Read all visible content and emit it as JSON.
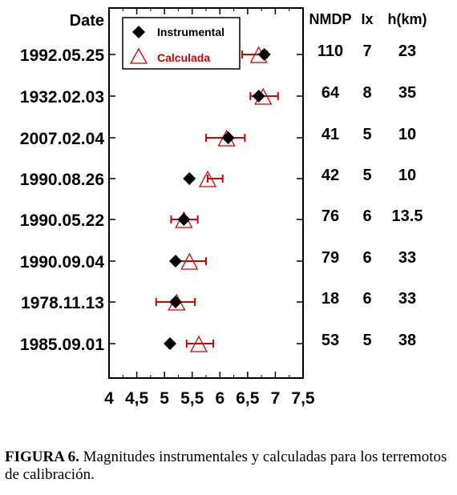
{
  "chart_data": {
    "type": "scatter",
    "xlim": [
      4,
      7.5
    ],
    "xticks": [
      4,
      4.5,
      5,
      5.5,
      6,
      6.5,
      7,
      7.5
    ],
    "xtick_labels": [
      "4",
      "4,5",
      "5",
      "5,5",
      "6",
      "6,5",
      "7",
      "7,5"
    ],
    "row_header": "Date",
    "column_headers": [
      "NMDP",
      "Ix",
      "h(km)"
    ],
    "grid": false,
    "legend_position": "top-left",
    "rows": [
      {
        "date": "1992.05.25",
        "instrumental": 6.8,
        "calculada": 6.7,
        "err_low": 6.4,
        "err_high": 6.85,
        "nmdp": "110",
        "ix": "7",
        "h": "23"
      },
      {
        "date": "1932.02.03",
        "instrumental": 6.7,
        "calculada": 6.78,
        "err_low": 6.55,
        "err_high": 7.05,
        "nmdp": "64",
        "ix": "8",
        "h": "35"
      },
      {
        "date": "2007.02.04",
        "instrumental": 6.15,
        "calculada": 6.12,
        "err_low": 5.75,
        "err_high": 6.45,
        "nmdp": "41",
        "ix": "5",
        "h": "10"
      },
      {
        "date": "1990.08.26",
        "instrumental": 5.45,
        "calculada": 5.78,
        "err_low": 5.78,
        "err_high": 6.05,
        "nmdp": "42",
        "ix": "5",
        "h": "10"
      },
      {
        "date": "1990.05.22",
        "instrumental": 5.35,
        "calculada": 5.35,
        "err_low": 5.12,
        "err_high": 5.6,
        "nmdp": "76",
        "ix": "6",
        "h": "13.5"
      },
      {
        "date": "1990.09.04",
        "instrumental": 5.2,
        "calculada": 5.45,
        "err_low": 5.18,
        "err_high": 5.75,
        "nmdp": "79",
        "ix": "6",
        "h": "33"
      },
      {
        "date": "1978.11.13",
        "instrumental": 5.2,
        "calculada": 5.22,
        "err_low": 4.85,
        "err_high": 5.55,
        "nmdp": "18",
        "ix": "6",
        "h": "33"
      },
      {
        "date": "1985.09.01",
        "instrumental": 5.1,
        "calculada": 5.62,
        "err_low": 5.4,
        "err_high": 5.88,
        "nmdp": "53",
        "ix": "5",
        "h": "38"
      }
    ],
    "series": [
      {
        "name": "Instrumental",
        "marker": "diamond",
        "color": "#000000"
      },
      {
        "name": "Calculada",
        "marker": "triangle-open",
        "color": "#cc0000"
      }
    ],
    "errorbar_color": "#cc0000"
  },
  "caption": {
    "label": "FIGURA 6.",
    "text": "Magnitudes instrumentales y calculadas para los terremotos de calibración."
  }
}
